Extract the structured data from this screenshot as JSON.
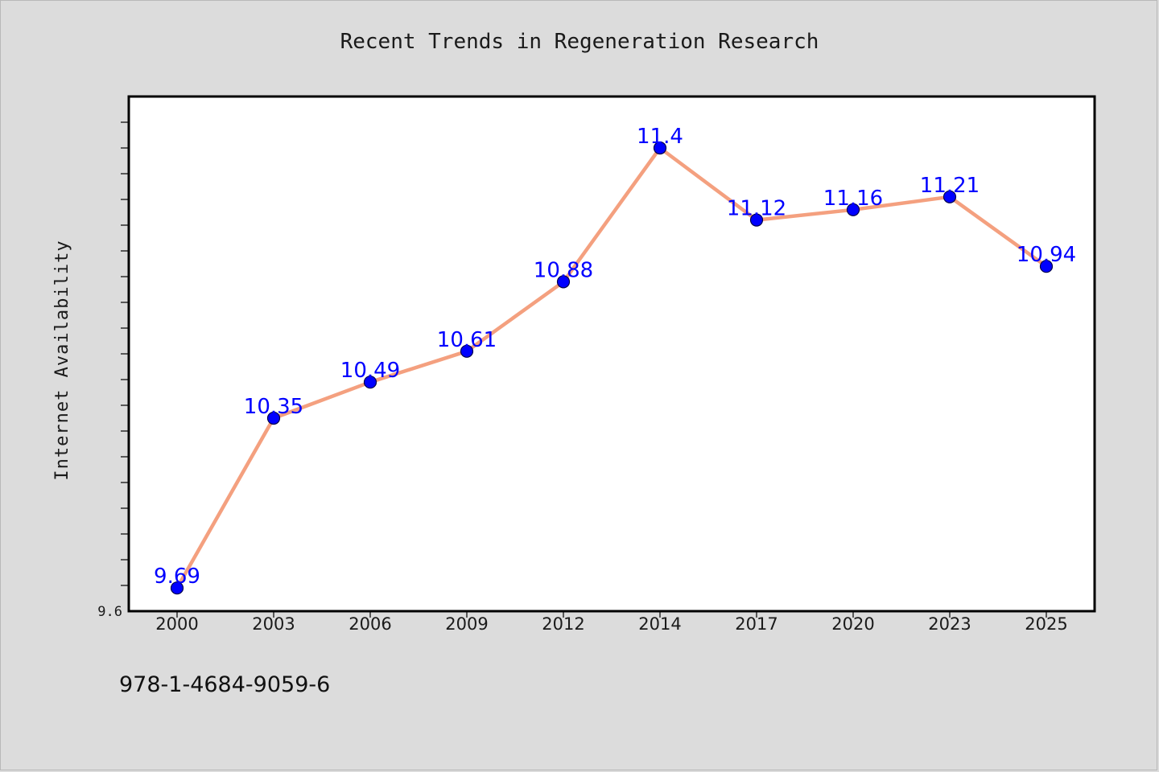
{
  "footer": {
    "code": "978-1-4684-9059-6"
  },
  "colors": {
    "background": "#dcdcdc",
    "plot_background": "#ffffff",
    "line": "#f4a07f",
    "marker": "#0000ff",
    "data_label": "#0000ff"
  },
  "chart_data": {
    "type": "line",
    "title": "Recent Trends in Regeneration Research",
    "xlabel": "",
    "ylabel": "Internet Availability",
    "categories": [
      "2000",
      "2003",
      "2006",
      "2009",
      "2012",
      "2014",
      "2017",
      "2020",
      "2023",
      "2025"
    ],
    "series": [
      {
        "values": [
          9.69,
          10.35,
          10.49,
          10.61,
          10.88,
          11.4,
          11.12,
          11.16,
          11.21,
          10.94
        ]
      }
    ],
    "data_labels": [
      "9.69",
      "10.35",
      "10.49",
      "10.61",
      "10.88",
      "11.4",
      "11.12",
      "11.16",
      "11.21",
      "10.94"
    ],
    "y_tick_labels": [
      "9.6"
    ],
    "ylim": [
      9.6,
      11.6
    ],
    "y_minor_step": 0.1,
    "grid": false,
    "legend": "none"
  }
}
